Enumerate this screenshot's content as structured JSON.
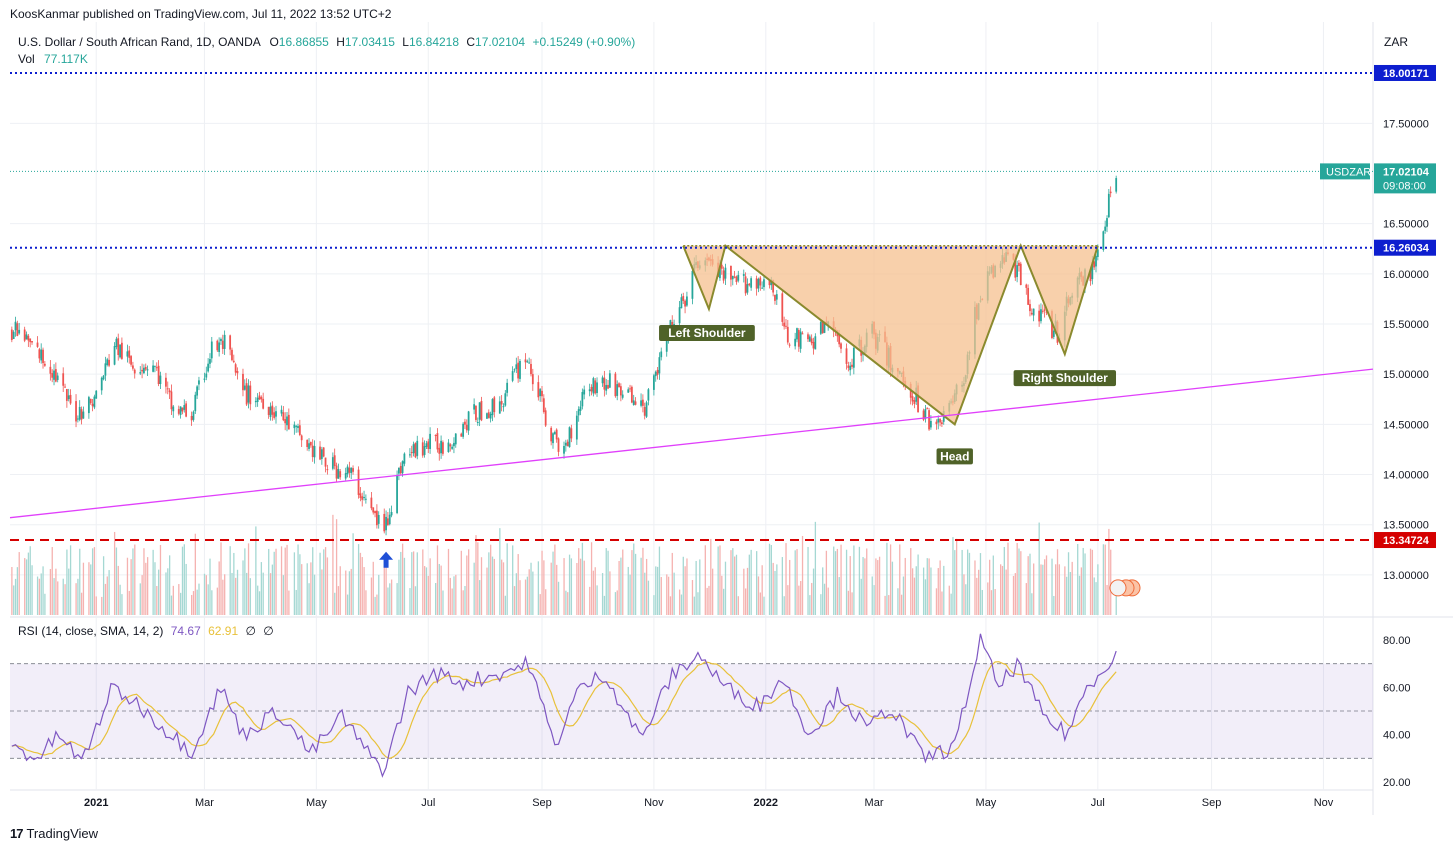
{
  "header": {
    "published": "KoosKanmar published on TradingView.com, Jul 11, 2022 13:52 UTC+2"
  },
  "legend": {
    "symbol": "U.S. Dollar / South African Rand, 1D, OANDA",
    "o_label": "O",
    "open": "16.86855",
    "h_label": "H",
    "high": "17.03415",
    "l_label": "L",
    "low": "16.84218",
    "c_label": "C",
    "close": "17.02104",
    "change": "+0.15249 (+0.90%)",
    "vol_label": "Vol",
    "vol": "77.117K"
  },
  "rsi_legend": {
    "label": "RSI (14, close, SMA, 14, 2)",
    "rsi": "74.67",
    "ma": "62.91",
    "z1": "∅",
    "z2": "∅"
  },
  "footer": {
    "brand": "TradingView"
  },
  "colors": {
    "up": "#26a69a",
    "down": "#ef5350",
    "trend": "#e040fb",
    "level": "#0d1ecf",
    "support": "#d50000",
    "pattern_fill": "#f6c08f",
    "pattern_line": "#8a8a2e",
    "rsi": "#7e57c2",
    "rsi_ma": "#e8c13a",
    "label_bg": "#4f6228"
  },
  "chart_data": {
    "type": "candlestick",
    "symbol": "USDZAR",
    "currency": "ZAR",
    "ylim": [
      12.6,
      18.45
    ],
    "y_ticks": [
      "13.00000",
      "13.50000",
      "14.00000",
      "14.50000",
      "15.00000",
      "15.50000",
      "16.00000",
      "16.50000",
      "17.50000"
    ],
    "x_ticks": [
      "2021",
      "Mar",
      "May",
      "Jul",
      "Sep",
      "Nov",
      "2022",
      "Mar",
      "May",
      "Jul",
      "Sep",
      "Nov"
    ],
    "x_range": [
      "2020-11-15",
      "2022-11-28"
    ],
    "price_path": [
      [
        "2020-11-16",
        15.45
      ],
      [
        "2020-11-26",
        15.3
      ],
      [
        "2020-12-08",
        15.05
      ],
      [
        "2020-12-20",
        14.6
      ],
      [
        "2020-12-31",
        14.75
      ],
      [
        "2021-01-11",
        15.3
      ],
      [
        "2021-01-20",
        15.1
      ],
      [
        "2021-02-01",
        15.1
      ],
      [
        "2021-02-12",
        14.65
      ],
      [
        "2021-02-22",
        14.6
      ],
      [
        "2021-03-05",
        15.25
      ],
      [
        "2021-03-12",
        15.3
      ],
      [
        "2021-03-22",
        14.8
      ],
      [
        "2021-04-02",
        14.75
      ],
      [
        "2021-04-13",
        14.55
      ],
      [
        "2021-04-26",
        14.3
      ],
      [
        "2021-05-07",
        14.1
      ],
      [
        "2021-05-20",
        14.0
      ],
      [
        "2021-06-01",
        13.6
      ],
      [
        "2021-06-07",
        13.45
      ],
      [
        "2021-06-17",
        14.15
      ],
      [
        "2021-06-29",
        14.3
      ],
      [
        "2021-07-10",
        14.3
      ],
      [
        "2021-07-26",
        14.6
      ],
      [
        "2021-08-09",
        14.7
      ],
      [
        "2021-08-23",
        15.2
      ],
      [
        "2021-09-06",
        14.4
      ],
      [
        "2021-09-12",
        14.2
      ],
      [
        "2021-09-25",
        14.9
      ],
      [
        "2021-10-10",
        14.9
      ],
      [
        "2021-10-27",
        14.65
      ],
      [
        "2021-11-08",
        15.35
      ],
      [
        "2021-11-18",
        15.75
      ],
      [
        "2021-11-27",
        16.2
      ],
      [
        "2021-12-06",
        16.0
      ],
      [
        "2021-12-16",
        15.9
      ],
      [
        "2022-01-02",
        15.95
      ],
      [
        "2022-01-13",
        15.4
      ],
      [
        "2022-01-24",
        15.3
      ],
      [
        "2022-02-04",
        15.5
      ],
      [
        "2022-02-16",
        15.1
      ],
      [
        "2022-02-27",
        15.45
      ],
      [
        "2022-03-11",
        15.1
      ],
      [
        "2022-03-21",
        14.85
      ],
      [
        "2022-03-31",
        14.55
      ],
      [
        "2022-04-09",
        14.6
      ],
      [
        "2022-04-18",
        14.9
      ],
      [
        "2022-04-27",
        15.75
      ],
      [
        "2022-05-06",
        16.05
      ],
      [
        "2022-05-14",
        16.2
      ],
      [
        "2022-05-24",
        15.75
      ],
      [
        "2022-06-01",
        15.55
      ],
      [
        "2022-06-10",
        15.4
      ],
      [
        "2022-06-19",
        16.0
      ],
      [
        "2022-06-27",
        15.95
      ],
      [
        "2022-07-04",
        16.5
      ],
      [
        "2022-07-11",
        17.02
      ]
    ],
    "levels": [
      {
        "label": "18.00171",
        "value": 18.00171,
        "style": "dotted",
        "color": "#0d1ecf"
      },
      {
        "label": "USDZAR",
        "value": 17.02104,
        "time": "09:08:00",
        "style": "dotted",
        "color": "#26a69a"
      },
      {
        "label": "16.26034",
        "value": 16.26034,
        "style": "dotted",
        "color": "#0d1ecf"
      },
      {
        "label": "13.34724",
        "value": 13.34724,
        "style": "dashed",
        "color": "#d50000"
      }
    ],
    "trendline": {
      "from": [
        "2020-11-15",
        13.57
      ],
      "to": [
        "2022-11-28",
        15.05
      ]
    },
    "pattern": {
      "name": "Inverse Head and Shoulders",
      "labels": [
        "Left Shoulder",
        "Head",
        "Right Shoulder"
      ],
      "points": [
        [
          "2021-11-17",
          16.28
        ],
        [
          "2021-12-01",
          15.65
        ],
        [
          "2021-12-10",
          16.28
        ],
        [
          "2022-04-14",
          14.5
        ],
        [
          "2022-05-20",
          16.28
        ],
        [
          "2022-06-13",
          15.2
        ],
        [
          "2022-07-01",
          16.28
        ]
      ]
    },
    "volume": {
      "label": "Vol",
      "last": "77.117K"
    },
    "rsi": {
      "params": "RSI (14, close, SMA, 14, 2)",
      "ylim": [
        20,
        80
      ],
      "y_ticks": [
        "20.00",
        "40.00",
        "60.00",
        "80.00"
      ],
      "bands": [
        30,
        50,
        70
      ],
      "path": [
        [
          "2020-11-16",
          35
        ],
        [
          "2020-11-30",
          30
        ],
        [
          "2020-12-12",
          40
        ],
        [
          "2020-12-24",
          28
        ],
        [
          "2021-01-10",
          60
        ],
        [
          "2021-01-25",
          52
        ],
        [
          "2021-02-08",
          42
        ],
        [
          "2021-02-22",
          33
        ],
        [
          "2021-03-10",
          60
        ],
        [
          "2021-03-22",
          40
        ],
        [
          "2021-04-10",
          50
        ],
        [
          "2021-04-28",
          32
        ],
        [
          "2021-05-15",
          48
        ],
        [
          "2021-05-28",
          33
        ],
        [
          "2021-06-07",
          25
        ],
        [
          "2021-06-20",
          58
        ],
        [
          "2021-07-05",
          66
        ],
        [
          "2021-07-20",
          62
        ],
        [
          "2021-08-05",
          65
        ],
        [
          "2021-08-25",
          70
        ],
        [
          "2021-09-08",
          35
        ],
        [
          "2021-09-20",
          58
        ],
        [
          "2021-10-05",
          66
        ],
        [
          "2021-10-25",
          38
        ],
        [
          "2021-11-10",
          64
        ],
        [
          "2021-11-25",
          74
        ],
        [
          "2021-12-10",
          60
        ],
        [
          "2021-12-28",
          52
        ],
        [
          "2022-01-10",
          64
        ],
        [
          "2022-01-25",
          40
        ],
        [
          "2022-02-10",
          58
        ],
        [
          "2022-02-25",
          42
        ],
        [
          "2022-03-10",
          52
        ],
        [
          "2022-03-28",
          30
        ],
        [
          "2022-04-14",
          35
        ],
        [
          "2022-04-28",
          80
        ],
        [
          "2022-05-08",
          60
        ],
        [
          "2022-05-18",
          70
        ],
        [
          "2022-06-01",
          48
        ],
        [
          "2022-06-14",
          40
        ],
        [
          "2022-06-25",
          60
        ],
        [
          "2022-07-11",
          74.67
        ]
      ]
    }
  }
}
